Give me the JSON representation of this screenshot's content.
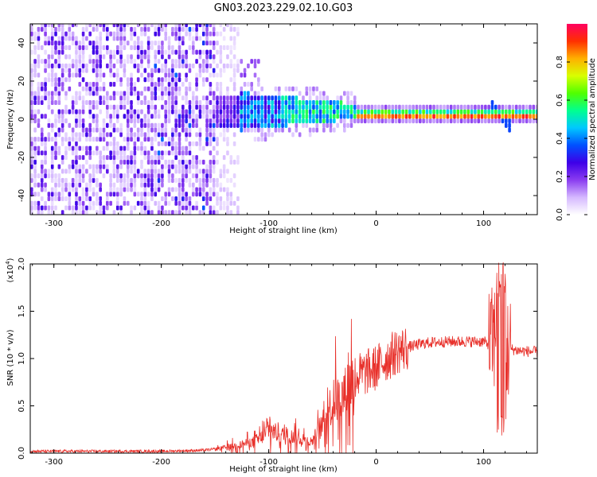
{
  "title": "GN03.2023.229.02.10.G03",
  "chart_data": [
    {
      "type": "heatmap",
      "xlabel": "Height of straight line (km)",
      "ylabel": "Frequency (Hz)",
      "xlim": [
        -322,
        150
      ],
      "ylim": [
        -50,
        50
      ],
      "x_ticks": [
        -300,
        -200,
        -100,
        0,
        100
      ],
      "x_tick_labels": [
        "-300",
        "-200",
        "-100",
        "0",
        "100"
      ],
      "y_ticks": [
        -40,
        -20,
        0,
        20,
        40
      ],
      "y_tick_labels": [
        "-40",
        "-20",
        "0",
        "20",
        "40"
      ],
      "colorbar": {
        "label": "Normalized spectral amplitude",
        "range": [
          0,
          1
        ],
        "ticks": [
          0.0,
          0.2,
          0.4,
          0.6,
          0.8
        ],
        "tick_labels": [
          "0.0",
          "0.2",
          "0.4",
          "0.6",
          "0.8"
        ],
        "colors": [
          "#ffffff",
          "#d5b8ff",
          "#8a3cf0",
          "#3d00e8",
          "#0050ff",
          "#00c8ff",
          "#00ff90",
          "#50ff00",
          "#d8ff00",
          "#ffb000",
          "#ff3000",
          "#ff0060"
        ]
      },
      "features": [
        {
          "x_range": [
            -322,
            -150
          ],
          "freq_range": [
            -50,
            50
          ],
          "amplitude": 0.08,
          "description_free": true
        },
        {
          "x_range": [
            -150,
            -20
          ],
          "freq_center": 3,
          "amplitude": 0.35
        },
        {
          "x_range": [
            -20,
            150
          ],
          "freq_center": 1,
          "amplitude": 0.9
        }
      ],
      "grid": false
    },
    {
      "type": "line",
      "xlabel": "Height of straight line (km)",
      "ylabel": "SNR (10 * v/v)",
      "y_exponent_label": "(x10",
      "y_exponent_power": "4",
      "y_exponent_close": ")",
      "xlim": [
        -322,
        150
      ],
      "ylim": [
        0,
        2.0
      ],
      "x_ticks": [
        -300,
        -200,
        -100,
        0,
        100
      ],
      "x_tick_labels": [
        "-300",
        "-200",
        "-100",
        "0",
        "100"
      ],
      "y_ticks": [
        0.0,
        0.5,
        1.0,
        1.5,
        2.0
      ],
      "y_tick_labels": [
        "0.0",
        "0.5",
        "1.0",
        "1.5",
        "2.0"
      ],
      "color": "#e8302a",
      "grid": false,
      "series": [
        {
          "x": [
            -322,
            -300,
            -250,
            -200,
            -160,
            -145,
            -130,
            -115,
            -105,
            -100,
            -90,
            -80,
            -70,
            -60,
            -50,
            -45,
            -40,
            -30,
            -25,
            -20,
            -10,
            0,
            10,
            20,
            30,
            40,
            50,
            70,
            90,
            100,
            105,
            110,
            114,
            116,
            118,
            120,
            125,
            135,
            150
          ],
          "y": [
            0.02,
            0.02,
            0.02,
            0.02,
            0.03,
            0.05,
            0.08,
            0.12,
            0.18,
            0.25,
            0.2,
            0.18,
            0.15,
            0.12,
            0.3,
            0.45,
            0.55,
            0.6,
            0.75,
            0.8,
            0.85,
            0.9,
            1.0,
            1.08,
            1.12,
            1.15,
            1.17,
            1.18,
            1.18,
            1.18,
            1.15,
            1.2,
            1.6,
            0.3,
            1.9,
            1.1,
            1.1,
            1.08,
            1.07
          ]
        }
      ]
    }
  ]
}
